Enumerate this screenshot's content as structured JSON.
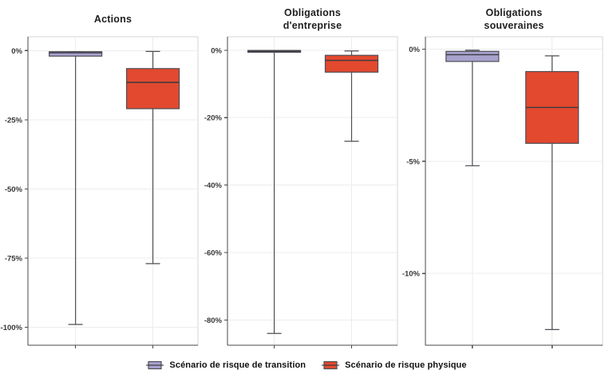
{
  "chart_data": {
    "type": "boxplot",
    "unit": "%",
    "panels": [
      {
        "title": "Actions",
        "ylim": [
          5,
          -106.5
        ],
        "yticks": [
          {
            "v": 0,
            "label": "0%"
          },
          {
            "v": -25,
            "label": "-25%"
          },
          {
            "v": -50,
            "label": "-50%"
          },
          {
            "v": -75,
            "label": "-75%"
          },
          {
            "v": -100,
            "label": "-100%"
          }
        ],
        "boxes": [
          {
            "series": "transition",
            "x": 0.28,
            "min": -99,
            "q1": -2,
            "median": -0.8,
            "q3": -0.4,
            "max": -0.4
          },
          {
            "series": "physique",
            "x": 0.735,
            "min": -77,
            "q1": -21,
            "median": -11.5,
            "q3": -6.5,
            "max": -0.3
          }
        ]
      },
      {
        "title": "Obligations\nd'entreprise",
        "ylim": [
          4,
          -87.5
        ],
        "yticks": [
          {
            "v": 0,
            "label": "0%"
          },
          {
            "v": -20,
            "label": "-20%"
          },
          {
            "v": -40,
            "label": "-40%"
          },
          {
            "v": -60,
            "label": "-60%"
          },
          {
            "v": -80,
            "label": "-80%"
          }
        ],
        "boxes": [
          {
            "series": "transition",
            "x": 0.275,
            "min": -84,
            "q1": -0.6,
            "median": -0.3,
            "q3": -0.05,
            "max": -0.05
          },
          {
            "series": "physique",
            "x": 0.73,
            "min": -27,
            "q1": -6.5,
            "median": -3,
            "q3": -1.5,
            "max": -0.2
          }
        ]
      },
      {
        "title": "Obligations\nsouveraines",
        "ylim": [
          0.55,
          -13.2
        ],
        "yticks": [
          {
            "v": 0,
            "label": "0%"
          },
          {
            "v": -5,
            "label": "-5%"
          },
          {
            "v": -10,
            "label": "-10%"
          }
        ],
        "boxes": [
          {
            "series": "transition",
            "x": 0.265,
            "min": -5.2,
            "q1": -0.55,
            "median": -0.25,
            "q3": -0.1,
            "max": -0.05
          },
          {
            "series": "physique",
            "x": 0.715,
            "min": -12.5,
            "q1": -4.2,
            "median": -2.6,
            "q3": -1.0,
            "max": -0.3
          }
        ]
      }
    ],
    "series": {
      "transition": {
        "name": "Scénario de risque de transition",
        "fill": "#a7a2ce"
      },
      "physique": {
        "name": "Scénario de risque physique",
        "fill": "#e2492f"
      }
    },
    "legend": [
      {
        "series": "transition",
        "label": "Scénario de risque de transition"
      },
      {
        "series": "physique",
        "label": "Scénario de risque physique"
      }
    ]
  },
  "colors": {
    "transition_fill": "#a7a2ce",
    "physique_fill": "#e2492f",
    "box_stroke": "#4e4e55",
    "median": "#3a3a40",
    "whisker": "#4e4e55",
    "grid": "#ececec",
    "panel_border": "#d4d4d4",
    "axis": "#4a4a4a",
    "tick_label": "#383838",
    "title": "#1f1f1f"
  }
}
